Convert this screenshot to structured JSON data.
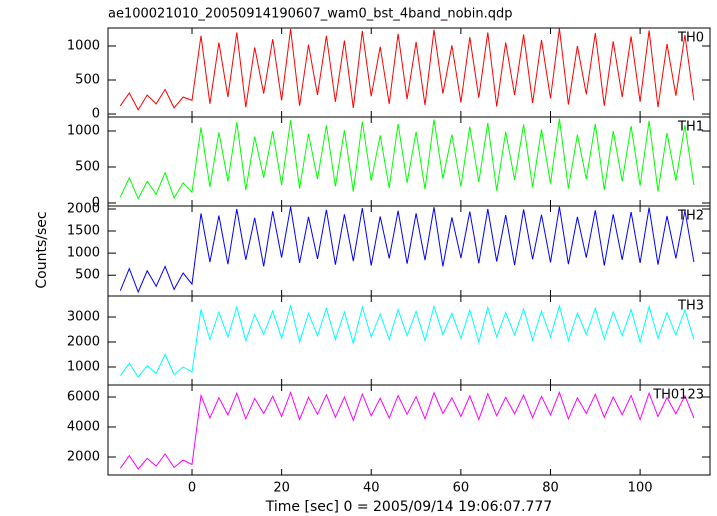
{
  "chart_data": [
    {
      "type": "line",
      "title": "ae100021010_20050914190607_wam0_bst_4band_nobin.qdp",
      "x": [
        -16,
        -14,
        -12,
        -10,
        -8,
        -6,
        -4,
        -2,
        0,
        2,
        4,
        6,
        8,
        10,
        12,
        14,
        16,
        18,
        20,
        22,
        24,
        26,
        28,
        30,
        32,
        34,
        36,
        38,
        40,
        42,
        44,
        46,
        48,
        50,
        52,
        54,
        56,
        58,
        60,
        62,
        64,
        66,
        68,
        70,
        72,
        74,
        76,
        78,
        80,
        82,
        84,
        86,
        88,
        90,
        92,
        94,
        96,
        98,
        100,
        102,
        104,
        106,
        108,
        110,
        112
      ],
      "series": [
        {
          "name": "TH0",
          "color": "#ff0000",
          "values": [
            120,
            310,
            60,
            280,
            150,
            360,
            90,
            250,
            200,
            1150,
            150,
            1050,
            250,
            1200,
            100,
            980,
            300,
            1100,
            200,
            1250,
            120,
            1020,
            280,
            1150,
            180,
            1080,
            90,
            1220,
            260,
            990,
            150,
            1180,
            220,
            1060,
            130,
            1240,
            300,
            1010,
            170,
            1130,
            240,
            1200,
            110,
            1050,
            280,
            1170,
            160,
            1090,
            230,
            1260,
            140,
            1000,
            290,
            1190,
            120,
            1070,
            250,
            1140,
            180,
            1230,
            100,
            1030,
            270,
            1160,
            200
          ]
        }
      ],
      "xlim": [
        -18.75,
        115.6
      ],
      "xticks": [
        0,
        20,
        40,
        60,
        80,
        100
      ],
      "ylim": [
        -44,
        1265
      ],
      "yticks": [
        0,
        500,
        1000
      ]
    },
    {
      "type": "line",
      "x": [
        -16,
        -14,
        -12,
        -10,
        -8,
        -6,
        -4,
        -2,
        0,
        2,
        4,
        6,
        8,
        10,
        12,
        14,
        16,
        18,
        20,
        22,
        24,
        26,
        28,
        30,
        32,
        34,
        36,
        38,
        40,
        42,
        44,
        46,
        48,
        50,
        52,
        54,
        56,
        58,
        60,
        62,
        64,
        66,
        68,
        70,
        72,
        74,
        76,
        78,
        80,
        82,
        84,
        86,
        88,
        90,
        92,
        94,
        96,
        98,
        100,
        102,
        104,
        106,
        108,
        110,
        112
      ],
      "series": [
        {
          "name": "TH1",
          "color": "#00ff00",
          "values": [
            80,
            350,
            60,
            300,
            120,
            420,
            70,
            280,
            150,
            1050,
            220,
            980,
            300,
            1120,
            180,
            920,
            350,
            1000,
            250,
            1150,
            200,
            960,
            330,
            1080,
            230,
            1010,
            160,
            1130,
            310,
            940,
            210,
            1100,
            280,
            990,
            190,
            1160,
            340,
            950,
            230,
            1060,
            290,
            1110,
            170,
            990,
            320,
            1090,
            220,
            1020,
            270,
            1170,
            200,
            950,
            330,
            1100,
            180,
            1000,
            300,
            1070,
            240,
            1140,
            160,
            970,
            310,
            1080,
            250
          ]
        }
      ],
      "xlim": [
        -18.75,
        115.6
      ],
      "xticks": [
        0,
        20,
        40,
        60,
        80,
        100
      ],
      "ylim": [
        -42,
        1194
      ],
      "yticks": [
        0,
        500,
        1000
      ]
    },
    {
      "type": "line",
      "ylabel": "Counts/sec",
      "x": [
        -16,
        -14,
        -12,
        -10,
        -8,
        -6,
        -4,
        -2,
        0,
        2,
        4,
        6,
        8,
        10,
        12,
        14,
        16,
        18,
        20,
        22,
        24,
        26,
        28,
        30,
        32,
        34,
        36,
        38,
        40,
        42,
        44,
        46,
        48,
        50,
        52,
        54,
        56,
        58,
        60,
        62,
        64,
        66,
        68,
        70,
        72,
        74,
        76,
        78,
        80,
        82,
        84,
        86,
        88,
        90,
        92,
        94,
        96,
        98,
        100,
        102,
        104,
        106,
        108,
        110,
        112
      ],
      "series": [
        {
          "name": "TH2",
          "color": "#0000ff",
          "values": [
            150,
            650,
            120,
            600,
            250,
            700,
            180,
            550,
            300,
            1900,
            800,
            1850,
            750,
            2000,
            850,
            1800,
            700,
            1950,
            900,
            2050,
            780,
            1820,
            870,
            1980,
            740,
            1880,
            820,
            2020,
            720,
            1830,
            880,
            1960,
            760,
            1900,
            840,
            2040,
            700,
            1810,
            890,
            1940,
            770,
            2000,
            810,
            1860,
            730,
            1990,
            860,
            1870,
            790,
            2050,
            750,
            1820,
            900,
            1970,
            720,
            1880,
            850,
            1930,
            780,
            2030,
            740,
            1840,
            880,
            1960,
            800
          ]
        }
      ],
      "xlim": [
        -18.75,
        115.6
      ],
      "xticks": [
        0,
        20,
        40,
        60,
        80,
        100
      ],
      "ylim": [
        30,
        2067
      ],
      "yticks": [
        500,
        1000,
        1500,
        2000
      ]
    },
    {
      "type": "line",
      "x": [
        -16,
        -14,
        -12,
        -10,
        -8,
        -6,
        -4,
        -2,
        0,
        2,
        4,
        6,
        8,
        10,
        12,
        14,
        16,
        18,
        20,
        22,
        24,
        26,
        28,
        30,
        32,
        34,
        36,
        38,
        40,
        42,
        44,
        46,
        48,
        50,
        52,
        54,
        56,
        58,
        60,
        62,
        64,
        66,
        68,
        70,
        72,
        74,
        76,
        78,
        80,
        82,
        84,
        86,
        88,
        90,
        92,
        94,
        96,
        98,
        100,
        102,
        104,
        106,
        108,
        110,
        112
      ],
      "series": [
        {
          "name": "TH3",
          "color": "#00ffff",
          "values": [
            650,
            1150,
            600,
            1050,
            750,
            1500,
            700,
            1000,
            800,
            3300,
            2100,
            3200,
            2200,
            3400,
            2050,
            3100,
            2300,
            3250,
            2150,
            3450,
            2000,
            3150,
            2250,
            3350,
            2100,
            3200,
            1950,
            3400,
            2200,
            3120,
            2100,
            3300,
            2250,
            3220,
            2050,
            3430,
            2300,
            3150,
            2150,
            3280,
            2000,
            3380,
            2200,
            3180,
            2280,
            3320,
            2080,
            3240,
            2200,
            3450,
            2050,
            3160,
            2300,
            3350,
            2120,
            3200,
            2250,
            3300,
            2000,
            3420,
            2150,
            3170,
            2280,
            3280,
            2100
          ]
        }
      ],
      "xlim": [
        -18.75,
        115.6
      ],
      "xticks": [
        0,
        20,
        40,
        60,
        80,
        100
      ],
      "ylim": [
        280,
        3840
      ],
      "yticks": [
        1000,
        2000,
        3000
      ]
    },
    {
      "type": "line",
      "xlabel": "Time [sec] 0 = 2005/09/14 19:06:07.777",
      "x": [
        -16,
        -14,
        -12,
        -10,
        -8,
        -6,
        -4,
        -2,
        0,
        2,
        4,
        6,
        8,
        10,
        12,
        14,
        16,
        18,
        20,
        22,
        24,
        26,
        28,
        30,
        32,
        34,
        36,
        38,
        40,
        42,
        44,
        46,
        48,
        50,
        52,
        54,
        56,
        58,
        60,
        62,
        64,
        66,
        68,
        70,
        72,
        74,
        76,
        78,
        80,
        82,
        84,
        86,
        88,
        90,
        92,
        94,
        96,
        98,
        100,
        102,
        104,
        106,
        108,
        110,
        112
      ],
      "series": [
        {
          "name": "TH0123",
          "color": "#ff00ff",
          "values": [
            1250,
            2100,
            1200,
            1900,
            1400,
            2200,
            1300,
            1800,
            1500,
            6100,
            4600,
            5950,
            4800,
            6250,
            4550,
            5900,
            4900,
            6050,
            4700,
            6300,
            4500,
            5980,
            4850,
            6150,
            4650,
            6000,
            4450,
            6200,
            4750,
            5920,
            4600,
            6100,
            4850,
            6020,
            4550,
            6280,
            4900,
            5950,
            4700,
            6080,
            4500,
            6220,
            4750,
            5970,
            4880,
            6130,
            4620,
            6050,
            4800,
            6300,
            4550,
            5940,
            4900,
            6180,
            4650,
            6000,
            4820,
            6100,
            4500,
            6260,
            4700,
            5960,
            4880,
            6080,
            4600
          ]
        }
      ],
      "xlim": [
        -18.75,
        115.6
      ],
      "xticks": [
        0,
        20,
        40,
        60,
        80,
        100
      ],
      "ylim": [
        800,
        6800
      ],
      "yticks": [
        2000,
        4000,
        6000
      ]
    }
  ]
}
